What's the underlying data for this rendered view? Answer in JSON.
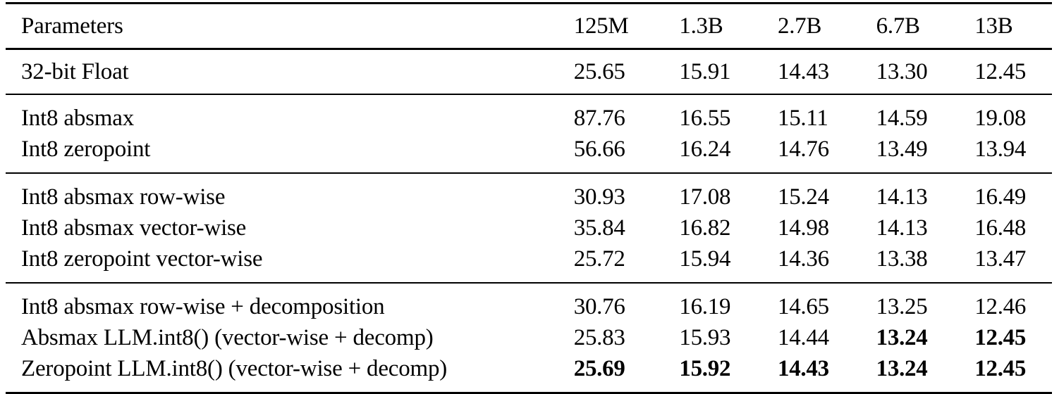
{
  "table": {
    "header": {
      "label": "Parameters",
      "columns": [
        "125M",
        "1.3B",
        "2.7B",
        "6.7B",
        "13B"
      ]
    },
    "groups": [
      {
        "rows": [
          {
            "label": "32-bit Float",
            "values": [
              "25.65",
              "15.91",
              "14.43",
              "13.30",
              "12.45"
            ],
            "bold": [
              false,
              false,
              false,
              false,
              false
            ]
          }
        ]
      },
      {
        "rows": [
          {
            "label": "Int8 absmax",
            "values": [
              "87.76",
              "16.55",
              "15.11",
              "14.59",
              "19.08"
            ],
            "bold": [
              false,
              false,
              false,
              false,
              false
            ]
          },
          {
            "label": "Int8 zeropoint",
            "values": [
              "56.66",
              "16.24",
              "14.76",
              "13.49",
              "13.94"
            ],
            "bold": [
              false,
              false,
              false,
              false,
              false
            ]
          }
        ]
      },
      {
        "rows": [
          {
            "label": "Int8 absmax row-wise",
            "values": [
              "30.93",
              "17.08",
              "15.24",
              "14.13",
              "16.49"
            ],
            "bold": [
              false,
              false,
              false,
              false,
              false
            ]
          },
          {
            "label": "Int8 absmax vector-wise",
            "values": [
              "35.84",
              "16.82",
              "14.98",
              "14.13",
              "16.48"
            ],
            "bold": [
              false,
              false,
              false,
              false,
              false
            ]
          },
          {
            "label": "Int8 zeropoint vector-wise",
            "values": [
              "25.72",
              "15.94",
              "14.36",
              "13.38",
              "13.47"
            ],
            "bold": [
              false,
              false,
              false,
              false,
              false
            ]
          }
        ]
      },
      {
        "rows": [
          {
            "label": "Int8 absmax row-wise + decomposition",
            "values": [
              "30.76",
              "16.19",
              "14.65",
              "13.25",
              "12.46"
            ],
            "bold": [
              false,
              false,
              false,
              false,
              false
            ]
          },
          {
            "label": "Absmax LLM.int8() (vector-wise + decomp)",
            "values": [
              "25.83",
              "15.93",
              "14.44",
              "13.24",
              "12.45"
            ],
            "bold": [
              false,
              false,
              false,
              true,
              true
            ]
          },
          {
            "label": "Zeropoint LLM.int8() (vector-wise + decomp)",
            "values": [
              "25.69",
              "15.92",
              "14.43",
              "13.24",
              "12.45"
            ],
            "bold": [
              true,
              true,
              true,
              true,
              true
            ]
          }
        ]
      }
    ]
  },
  "chart_data": {
    "type": "table",
    "title": "",
    "columns": [
      "Parameters",
      "125M",
      "1.3B",
      "2.7B",
      "6.7B",
      "13B"
    ],
    "rows": [
      [
        "32-bit Float",
        25.65,
        15.91,
        14.43,
        13.3,
        12.45
      ],
      [
        "Int8 absmax",
        87.76,
        16.55,
        15.11,
        14.59,
        19.08
      ],
      [
        "Int8 zeropoint",
        56.66,
        16.24,
        14.76,
        13.49,
        13.94
      ],
      [
        "Int8 absmax row-wise",
        30.93,
        17.08,
        15.24,
        14.13,
        16.49
      ],
      [
        "Int8 absmax vector-wise",
        35.84,
        16.82,
        14.98,
        14.13,
        16.48
      ],
      [
        "Int8 zeropoint vector-wise",
        25.72,
        15.94,
        14.36,
        13.38,
        13.47
      ],
      [
        "Int8 absmax row-wise + decomposition",
        30.76,
        16.19,
        14.65,
        13.25,
        12.46
      ],
      [
        "Absmax LLM.int8() (vector-wise + decomp)",
        25.83,
        15.93,
        14.44,
        13.24,
        12.45
      ],
      [
        "Zeropoint LLM.int8() (vector-wise + decomp)",
        25.69,
        15.92,
        14.43,
        13.24,
        12.45
      ]
    ],
    "bold_cells": [
      {
        "row": 7,
        "col": "6.7B"
      },
      {
        "row": 7,
        "col": "13B"
      },
      {
        "row": 8,
        "col": "125M"
      },
      {
        "row": 8,
        "col": "1.3B"
      },
      {
        "row": 8,
        "col": "2.7B"
      },
      {
        "row": 8,
        "col": "6.7B"
      },
      {
        "row": 8,
        "col": "13B"
      }
    ]
  }
}
